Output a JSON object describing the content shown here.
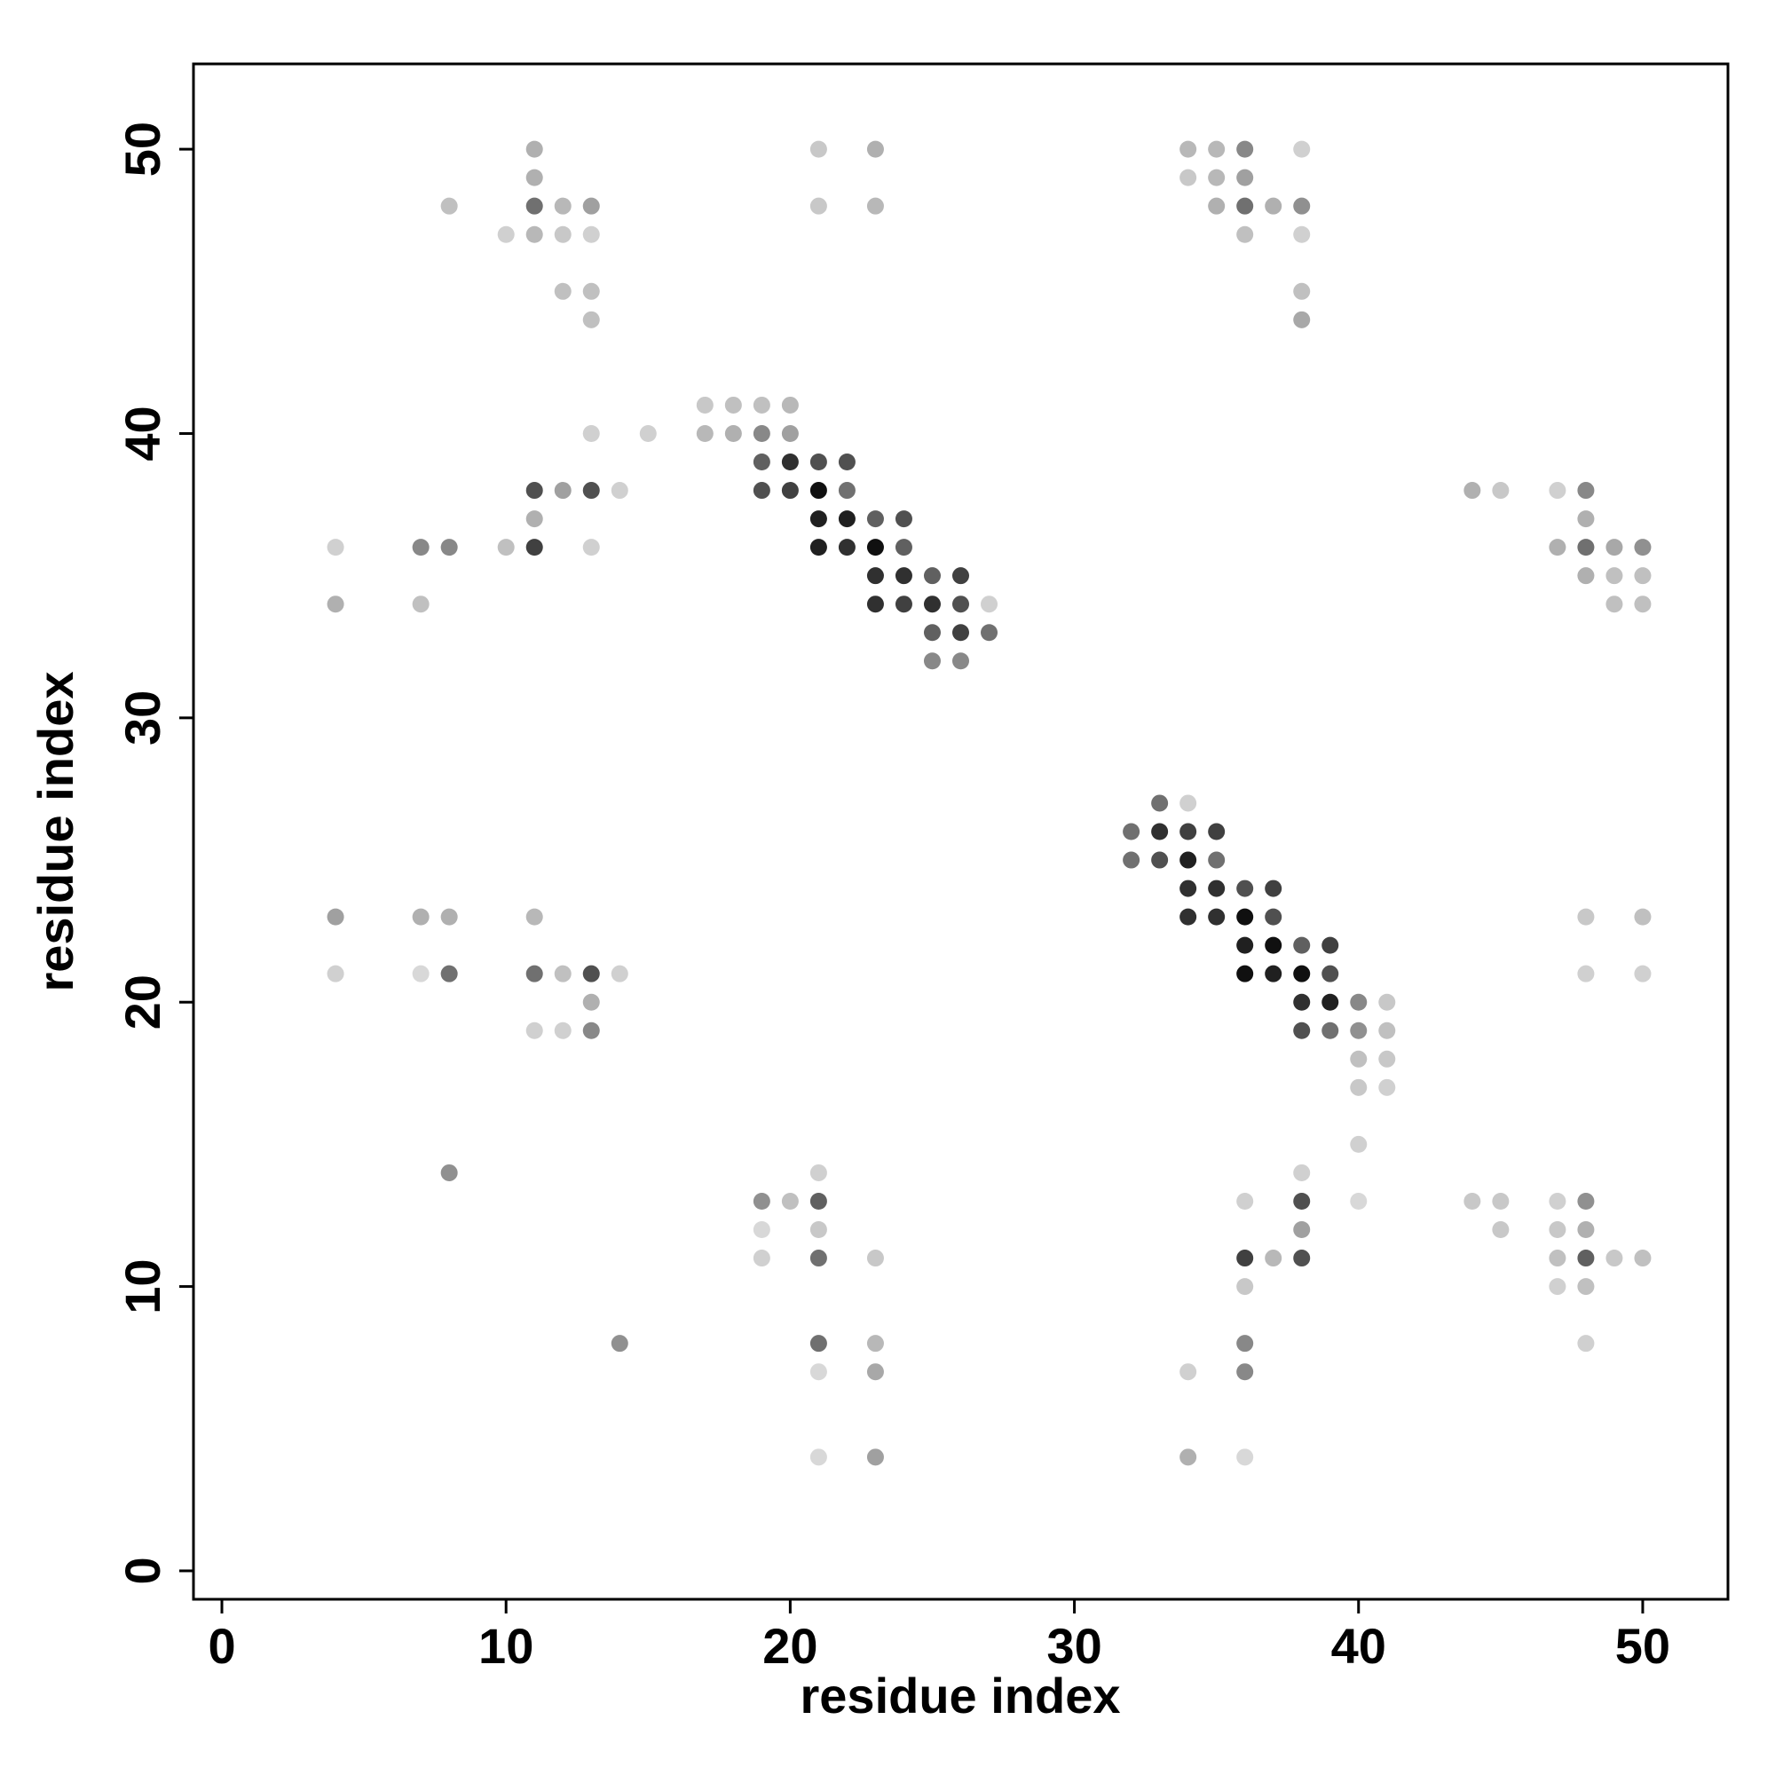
{
  "chart_data": {
    "type": "scatter",
    "x_label": "residue index",
    "y_label": "residue index",
    "xlim": [
      -1,
      53
    ],
    "ylim": [
      -1,
      53
    ],
    "xticks": [
      0,
      10,
      20,
      30,
      40,
      50
    ],
    "yticks": [
      0,
      10,
      20,
      30,
      40,
      50
    ],
    "grid": false,
    "x": [
      11,
      21,
      23,
      34,
      35,
      36,
      38,
      11,
      34,
      35,
      36,
      8,
      11,
      12,
      13,
      21,
      23,
      35,
      36,
      37,
      38,
      10,
      11,
      12,
      13,
      36,
      38,
      12,
      13,
      38,
      13,
      38,
      17,
      18,
      19,
      20,
      13,
      15,
      17,
      18,
      19,
      20,
      19,
      20,
      21,
      22,
      11,
      12,
      13,
      14,
      19,
      20,
      21,
      22,
      44,
      45,
      47,
      48,
      11,
      21,
      22,
      23,
      24,
      48,
      4,
      7,
      8,
      10,
      11,
      13,
      21,
      22,
      23,
      24,
      47,
      48,
      49,
      50,
      23,
      24,
      25,
      26,
      48,
      49,
      50,
      4,
      7,
      23,
      24,
      25,
      26,
      27,
      49,
      50,
      25,
      26,
      27,
      25,
      26,
      33,
      34,
      32,
      33,
      34,
      35,
      32,
      33,
      34,
      35,
      34,
      35,
      36,
      37,
      4,
      7,
      8,
      11,
      34,
      35,
      36,
      37,
      48,
      50,
      36,
      37,
      38,
      39,
      4,
      7,
      8,
      11,
      12,
      13,
      14,
      36,
      37,
      38,
      39,
      48,
      50,
      13,
      38,
      39,
      40,
      41,
      11,
      12,
      13,
      38,
      39,
      40,
      41,
      40,
      41,
      40,
      41,
      40,
      8,
      21,
      38,
      19,
      20,
      21,
      36,
      38,
      40,
      44,
      45,
      47,
      48,
      19,
      21,
      38,
      45,
      47,
      48,
      19,
      21,
      23,
      36,
      37,
      38,
      47,
      48,
      49,
      50,
      36,
      47,
      48,
      14,
      21,
      23,
      36,
      48,
      21,
      23,
      34,
      36,
      21,
      23,
      34,
      36
    ],
    "y": [
      50,
      50,
      50,
      50,
      50,
      50,
      50,
      49,
      49,
      49,
      49,
      48,
      48,
      48,
      48,
      48,
      48,
      48,
      48,
      48,
      48,
      47,
      47,
      47,
      47,
      47,
      47,
      45,
      45,
      45,
      44,
      44,
      41,
      41,
      41,
      41,
      40,
      40,
      40,
      40,
      40,
      40,
      39,
      39,
      39,
      39,
      38,
      38,
      38,
      38,
      38,
      38,
      38,
      38,
      38,
      38,
      38,
      38,
      37,
      37,
      37,
      37,
      37,
      37,
      36,
      36,
      36,
      36,
      36,
      36,
      36,
      36,
      36,
      36,
      36,
      36,
      36,
      36,
      35,
      35,
      35,
      35,
      35,
      35,
      35,
      34,
      34,
      34,
      34,
      34,
      34,
      34,
      34,
      34,
      33,
      33,
      33,
      32,
      32,
      27,
      27,
      26,
      26,
      26,
      26,
      25,
      25,
      25,
      25,
      24,
      24,
      24,
      24,
      23,
      23,
      23,
      23,
      23,
      23,
      23,
      23,
      23,
      23,
      22,
      22,
      22,
      22,
      21,
      21,
      21,
      21,
      21,
      21,
      21,
      21,
      21,
      21,
      21,
      21,
      21,
      20,
      20,
      20,
      20,
      20,
      19,
      19,
      19,
      19,
      19,
      19,
      19,
      18,
      18,
      17,
      17,
      15,
      14,
      14,
      14,
      13,
      13,
      13,
      13,
      13,
      13,
      13,
      13,
      13,
      13,
      12,
      12,
      12,
      12,
      12,
      12,
      11,
      11,
      11,
      11,
      11,
      11,
      11,
      11,
      11,
      11,
      10,
      10,
      10,
      8,
      8,
      8,
      8,
      8,
      7,
      7,
      7,
      7,
      4,
      4,
      4,
      4
    ],
    "colors": [
      "#b0b0b0",
      "#c8c8c8",
      "#b0b0b0",
      "#b8b8b8",
      "#b8b8b8",
      "#888888",
      "#d0d0d0",
      "#b0b0b0",
      "#c8c8c8",
      "#b8b8b8",
      "#a0a0a0",
      "#c0c0c0",
      "#707070",
      "#b8b8b8",
      "#a0a0a0",
      "#c8c8c8",
      "#b8b8b8",
      "#b0b0b0",
      "#707070",
      "#b0b0b0",
      "#909090",
      "#d0d0d0",
      "#b8b8b8",
      "#c8c8c8",
      "#d0d0d0",
      "#c0c0c0",
      "#d0d0d0",
      "#c0c0c0",
      "#c0c0c0",
      "#c0c0c0",
      "#c0c0c0",
      "#a8a8a8",
      "#c8c8c8",
      "#c0c0c0",
      "#c0c0c0",
      "#b8b8b8",
      "#d0d0d0",
      "#d0d0d0",
      "#b8b8b8",
      "#b0b0b0",
      "#888888",
      "#a0a0a0",
      "#606060",
      "#303030",
      "#505050",
      "#505050",
      "#505050",
      "#a0a0a0",
      "#505050",
      "#d0d0d0",
      "#505050",
      "#404040",
      "#101010",
      "#707070",
      "#b0b0b0",
      "#c8c8c8",
      "#d0d0d0",
      "#888888",
      "#b0b0b0",
      "#202020",
      "#202020",
      "#606060",
      "#505050",
      "#b0b0b0",
      "#d0d0d0",
      "#888888",
      "#888888",
      "#c0c0c0",
      "#404040",
      "#d0d0d0",
      "#202020",
      "#303030",
      "#101010",
      "#606060",
      "#b0b0b0",
      "#707070",
      "#a8a8a8",
      "#909090",
      "#303030",
      "#303030",
      "#606060",
      "#404040",
      "#b0b0b0",
      "#c0c0c0",
      "#c0c0c0",
      "#b0b0b0",
      "#c0c0c0",
      "#303030",
      "#404040",
      "#303030",
      "#505050",
      "#d0d0d0",
      "#c0c0c0",
      "#c0c0c0",
      "#606060",
      "#404040",
      "#707070",
      "#888888",
      "#888888",
      "#707070",
      "#d0d0d0",
      "#707070",
      "#303030",
      "#404040",
      "#404040",
      "#707070",
      "#505050",
      "#202020",
      "#707070",
      "#303030",
      "#303030",
      "#505050",
      "#404040",
      "#a0a0a0",
      "#b0b0b0",
      "#b0b0b0",
      "#b8b8b8",
      "#303030",
      "#303030",
      "#101010",
      "#505050",
      "#c8c8c8",
      "#c0c0c0",
      "#202020",
      "#101010",
      "#606060",
      "#404040",
      "#d0d0d0",
      "#d8d8d8",
      "#707070",
      "#707070",
      "#c0c0c0",
      "#505050",
      "#d0d0d0",
      "#101010",
      "#202020",
      "#101010",
      "#505050",
      "#d0d0d0",
      "#d0d0d0",
      "#b0b0b0",
      "#303030",
      "#202020",
      "#888888",
      "#c8c8c8",
      "#d0d0d0",
      "#d0d0d0",
      "#888888",
      "#505050",
      "#707070",
      "#909090",
      "#c0c0c0",
      "#c0c0c0",
      "#c8c8c8",
      "#c8c8c8",
      "#d0d0d0",
      "#d0d0d0",
      "#909090",
      "#d0d0d0",
      "#d0d0d0",
      "#909090",
      "#c0c0c0",
      "#606060",
      "#d0d0d0",
      "#505050",
      "#d8d8d8",
      "#c8c8c8",
      "#c8c8c8",
      "#d0d0d0",
      "#909090",
      "#d8d8d8",
      "#c8c8c8",
      "#a0a0a0",
      "#c8c8c8",
      "#c8c8c8",
      "#b0b0b0",
      "#d0d0d0",
      "#707070",
      "#c8c8c8",
      "#404040",
      "#b8b8b8",
      "#505050",
      "#c0c0c0",
      "#606060",
      "#c8c8c8",
      "#c0c0c0",
      "#c8c8c8",
      "#d0d0d0",
      "#c0c0c0",
      "#909090",
      "#707070",
      "#b8b8b8",
      "#888888",
      "#d0d0d0",
      "#d8d8d8",
      "#a8a8a8",
      "#d0d0d0",
      "#888888",
      "#d8d8d8",
      "#a0a0a0",
      "#b0b0b0",
      "#d8d8d8"
    ]
  }
}
